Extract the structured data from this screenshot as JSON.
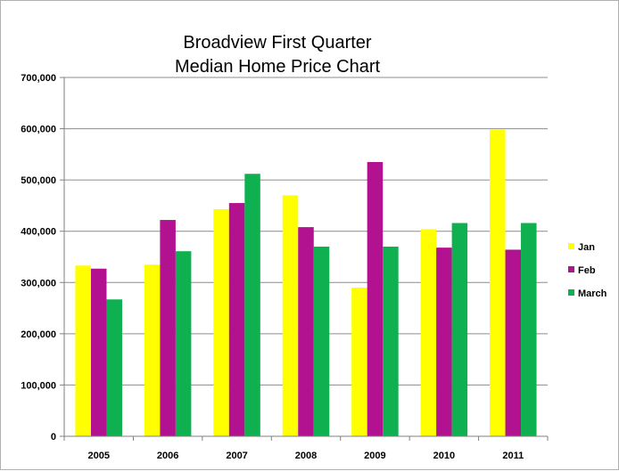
{
  "chart_data": {
    "type": "bar",
    "title": [
      "Broadview First Quarter",
      "Median Home Price Chart"
    ],
    "categories": [
      "2005",
      "2006",
      "2007",
      "2008",
      "2009",
      "2010",
      "2011"
    ],
    "series": [
      {
        "name": "Jan",
        "color": "#ffff00",
        "values": [
          333000,
          335000,
          443000,
          470000,
          290000,
          404000,
          598000
        ]
      },
      {
        "name": "Feb",
        "color": "#b2118f",
        "values": [
          327000,
          422000,
          455000,
          408000,
          535000,
          368000,
          364000
        ]
      },
      {
        "name": "March",
        "color": "#0fb04f",
        "values": [
          267000,
          361000,
          512000,
          370000,
          370000,
          416000,
          416000
        ]
      }
    ],
    "ylim": [
      0,
      700000
    ],
    "yticks": [
      0,
      100000,
      200000,
      300000,
      400000,
      500000,
      600000,
      700000
    ],
    "ytick_labels": [
      "0",
      "100,000",
      "200,000",
      "300,000",
      "400,000",
      "500,000",
      "600,000",
      "700,000"
    ],
    "grid": "horizontal",
    "legend_position": "right"
  }
}
